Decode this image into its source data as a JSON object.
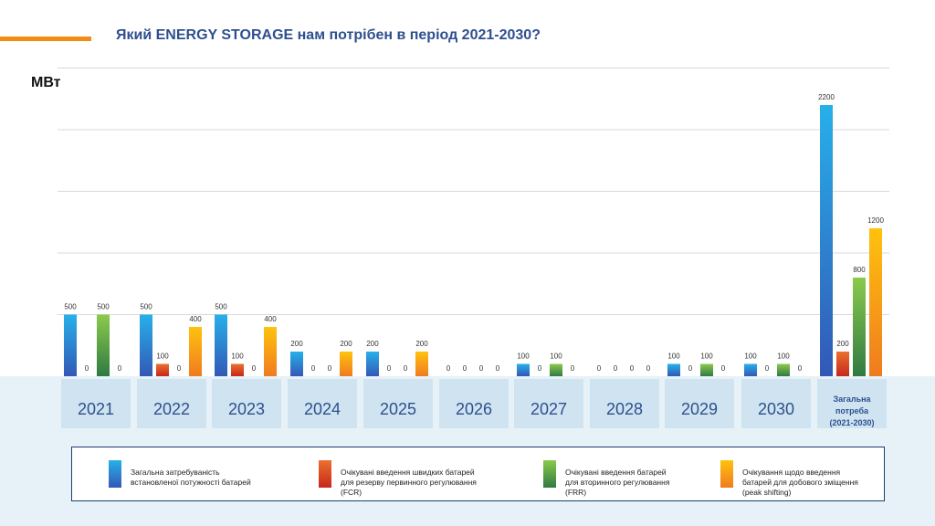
{
  "title": "Який ENERGY STORAGE нам потрібен в період 2021-2030?",
  "colors": {
    "accent": "#f28c14",
    "title": "#2e4f8f",
    "band": "#e6f2f8",
    "category_box": "#bcd9ea",
    "category_text": "#2e4f8f"
  },
  "chart_data": {
    "type": "bar",
    "ylabel": "МВт",
    "ylim": [
      0,
      2500
    ],
    "grid": true,
    "legend_position": "bottom",
    "categories": [
      "2021",
      "2022",
      "2023",
      "2024",
      "2025",
      "2026",
      "2027",
      "2028",
      "2029",
      "2030",
      "Загальна\nпотреба\n(2021-2030)"
    ],
    "series": [
      {
        "name": "Загальна затребуваність\nвстановленої потужності батарей",
        "color_top": "#27b0ea",
        "color_bottom": "#3358b5",
        "values": [
          500,
          500,
          500,
          200,
          200,
          0,
          100,
          0,
          100,
          100,
          2200
        ]
      },
      {
        "name": "Очікувані введення швидких батарей\nдля резерву первинного регулювання\n(FCR)",
        "color_top": "#ec7030",
        "color_bottom": "#c6281a",
        "values": [
          0,
          100,
          100,
          0,
          0,
          0,
          0,
          0,
          0,
          0,
          200
        ]
      },
      {
        "name": "Очікувані введення батарей\nдля вторинного регулювання\n(FRR)",
        "color_top": "#8cca4d",
        "color_bottom": "#2f7a42",
        "values": [
          500,
          0,
          0,
          0,
          0,
          0,
          100,
          0,
          100,
          100,
          800
        ]
      },
      {
        "name": "Очікування щодо введення\nбатарей для добового зміщення\n(peak shifting)",
        "color_top": "#ffc20e",
        "color_bottom": "#ef7b1f",
        "values": [
          0,
          400,
          400,
          200,
          200,
          0,
          0,
          0,
          0,
          0,
          1200
        ]
      }
    ]
  }
}
